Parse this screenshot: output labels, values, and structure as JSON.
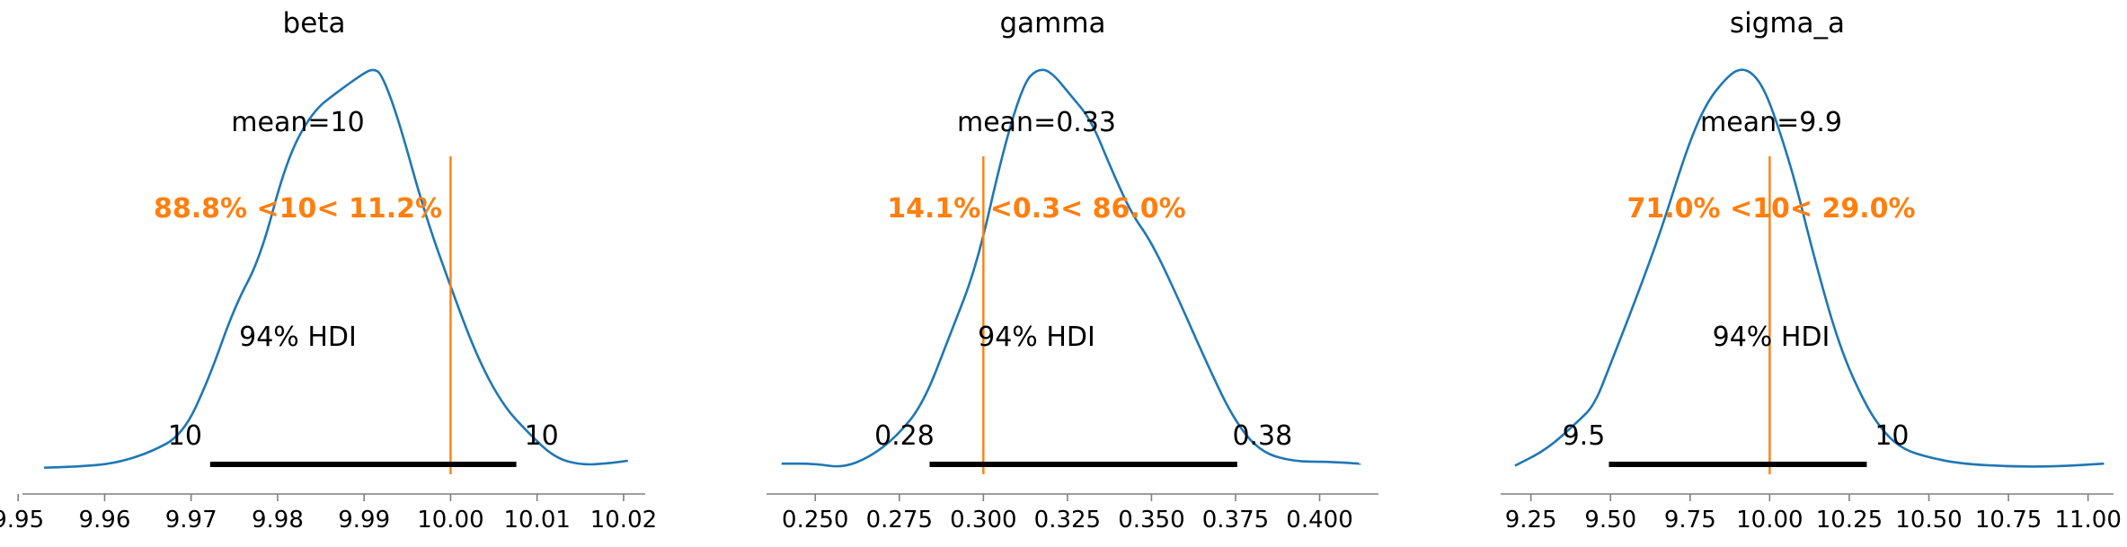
{
  "chart_data": [
    {
      "type": "line",
      "title": "beta",
      "xlim": [
        9.9505,
        10.0225
      ],
      "x_ticks": [
        "9.95",
        "9.96",
        "9.97",
        "9.98",
        "9.99",
        "10.00",
        "10.01",
        "10.02"
      ],
      "x_tick_values": [
        9.95,
        9.96,
        9.97,
        9.98,
        9.99,
        10.0,
        10.01,
        10.02
      ],
      "mean_label": "mean=10",
      "ref_value": 10.0,
      "ref_label": "88.8% <10< 11.2%",
      "hdi_label": "94% HDI",
      "hdi": [
        9.9722,
        10.0076
      ],
      "hdi_low_label": "10",
      "hdi_high_label": "10",
      "density": {
        "x": [
          9.953,
          9.957,
          9.961,
          9.965,
          9.969,
          9.972,
          9.975,
          9.978,
          9.981,
          9.984,
          9.987,
          9.99,
          9.991,
          9.992,
          9.994,
          9.997,
          10.0,
          10.003,
          10.006,
          10.009,
          10.012,
          10.015,
          10.018,
          10.0205
        ],
        "y": [
          0.005,
          0.008,
          0.015,
          0.04,
          0.085,
          0.22,
          0.4,
          0.52,
          0.76,
          0.88,
          0.93,
          0.975,
          0.985,
          0.975,
          0.86,
          0.63,
          0.45,
          0.28,
          0.16,
          0.09,
          0.03,
          0.012,
          0.015,
          0.022
        ]
      }
    },
    {
      "type": "line",
      "title": "gamma",
      "xlim": [
        0.2355,
        0.4175
      ],
      "x_ticks": [
        "0.250",
        "0.275",
        "0.300",
        "0.325",
        "0.350",
        "0.375",
        "0.400"
      ],
      "x_tick_values": [
        0.25,
        0.275,
        0.3,
        0.325,
        0.35,
        0.375,
        0.4
      ],
      "mean_label": "mean=0.33",
      "ref_value": 0.3,
      "ref_label": "14.1% <0.3< 86.0%",
      "hdi_label": "94% HDI",
      "hdi": [
        0.284,
        0.3755
      ],
      "hdi_low_label": "0.28",
      "hdi_high_label": "0.38",
      "density": {
        "x": [
          0.24,
          0.25,
          0.258,
          0.266,
          0.274,
          0.282,
          0.29,
          0.298,
          0.306,
          0.312,
          0.316,
          0.32,
          0.326,
          0.332,
          0.338,
          0.344,
          0.35,
          0.358,
          0.366,
          0.374,
          0.382,
          0.392,
          0.402,
          0.412
        ],
        "y": [
          0.015,
          0.015,
          0.005,
          0.03,
          0.08,
          0.16,
          0.33,
          0.5,
          0.79,
          0.95,
          0.985,
          0.98,
          0.92,
          0.86,
          0.74,
          0.63,
          0.56,
          0.42,
          0.27,
          0.13,
          0.045,
          0.02,
          0.02,
          0.015
        ]
      }
    },
    {
      "type": "line",
      "title": "sigma_a",
      "xlim": [
        9.155,
        11.08
      ],
      "x_ticks": [
        "9.25",
        "9.50",
        "9.75",
        "10.00",
        "10.25",
        "10.50",
        "10.75",
        "11.00"
      ],
      "x_tick_values": [
        9.25,
        9.5,
        9.75,
        10.0,
        10.25,
        10.5,
        10.75,
        11.0
      ],
      "mean_label": "mean=9.9",
      "ref_value": 10.0,
      "ref_label": "71.0% <10< 29.0%",
      "hdi_label": "94% HDI",
      "hdi": [
        9.495,
        10.305
      ],
      "hdi_low_label": "9.5",
      "hdi_high_label": "10",
      "density": {
        "x": [
          9.2,
          9.3,
          9.4,
          9.45,
          9.5,
          9.58,
          9.66,
          9.74,
          9.8,
          9.86,
          9.9,
          9.94,
          9.98,
          10.02,
          10.08,
          10.14,
          10.22,
          10.3,
          10.36,
          10.42,
          10.5,
          10.6,
          10.75,
          10.9,
          11.05
        ],
        "y": [
          0.01,
          0.05,
          0.12,
          0.16,
          0.26,
          0.42,
          0.59,
          0.79,
          0.9,
          0.96,
          0.985,
          0.98,
          0.94,
          0.86,
          0.71,
          0.52,
          0.3,
          0.16,
          0.09,
          0.05,
          0.03,
          0.015,
          0.008,
          0.008,
          0.015
        ]
      }
    }
  ]
}
